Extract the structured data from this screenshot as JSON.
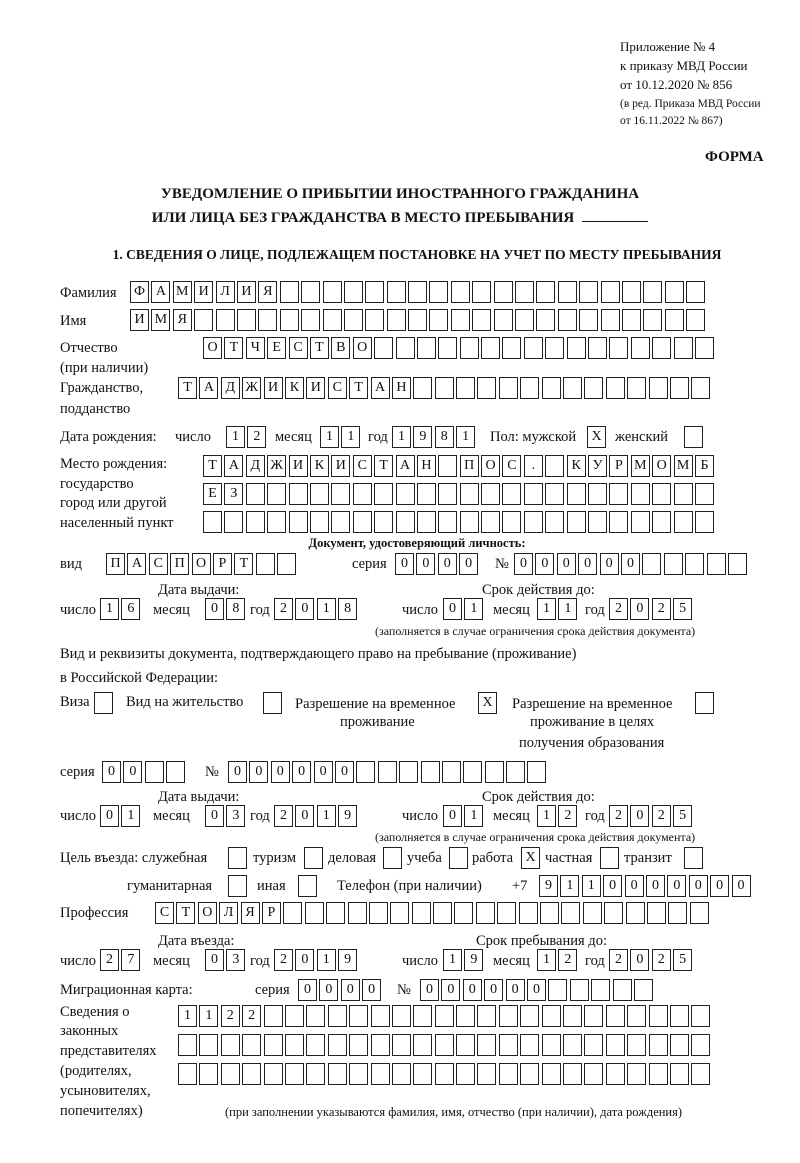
{
  "header": {
    "appendix_lines": [
      "Приложение № 4",
      "к приказу МВД России",
      "от 10.12.2020 № 856"
    ],
    "revision_lines": [
      "(в ред. Приказа МВД России",
      "от 16.11.2022 № 867)"
    ],
    "form_label": "ФОРМА",
    "title_line1": "УВЕДОМЛЕНИЕ О ПРИБЫТИИ ИНОСТРАННОГО ГРАЖДАНИНА",
    "title_line2": "ИЛИ ЛИЦА БЕЗ ГРАЖДАНСТВА В МЕСТО ПРЕБЫВАНИЯ",
    "section1": "1. СВЕДЕНИЯ О ЛИЦЕ, ПОДЛЕЖАЩЕМ ПОСТАНОВКЕ НА УЧЕТ ПО МЕСТУ ПРЕБЫВАНИЯ"
  },
  "labels": {
    "surname": "Фамилия",
    "name": "Имя",
    "patronymic": "Отчество",
    "patronymic_note": "(при наличии)",
    "citizenship1": "Гражданство,",
    "citizenship2": "подданство",
    "birth_date": "Дата рождения:",
    "day": "число",
    "month": "месяц",
    "year": "год",
    "sex_male": "Пол: мужской",
    "sex_female": "женский",
    "birth_place": [
      "Место рождения:",
      "государство",
      "город или другой",
      "населенный пункт"
    ],
    "id_doc": "Документ, удостоверяющий личность:",
    "kind": "вид",
    "series": "серия",
    "number": "№",
    "issue_date": "Дата выдачи:",
    "valid_until": "Срок действия до:",
    "valid_note": "(заполняется в случае ограничения срока действия документа)",
    "stay_doc1": "Вид и реквизиты документа, подтверждающего право на пребывание (проживание)",
    "stay_doc2": "в Российской Федерации:",
    "visa": "Виза",
    "residence_permit": "Вид на жительство",
    "temp_residence": [
      "Разрешение на временное",
      "проживание"
    ],
    "temp_residence_edu": [
      "Разрешение на временное",
      "проживание в целях",
      "получения образования"
    ],
    "purpose": "Цель въезда: служебная",
    "tourism": "туризм",
    "business": "деловая",
    "study": "учеба",
    "work": "работа",
    "private": "частная",
    "transit": "транзит",
    "humanitarian": "гуманитарная",
    "other": "иная",
    "phone": "Телефон (при наличии)",
    "phone_prefix": "+7",
    "profession": "Профессия",
    "entry_date": "Дата въезда:",
    "stay_until": "Срок пребывания до:",
    "migration_card": "Миграционная карта:",
    "representatives": [
      "Сведения о",
      "законных",
      "представителях",
      "(родителях,",
      "усыновителях,",
      "попечителях)"
    ],
    "representatives_note": "(при заполнении указываются фамилия, имя, отчество (при наличии), дата рождения)"
  },
  "values": {
    "surname": "ФАМИЛИЯ",
    "name": "ИМЯ",
    "patronymic": "ОТЧЕСТВО",
    "citizenship": "ТАДЖИКИСТАН",
    "birth_day": "12",
    "birth_month": "11",
    "birth_year": "1981",
    "sex_male": "X",
    "sex_female": "",
    "birth_place_1": "ТАДЖИКИСТАН ПОС. КУРМОМБ",
    "birth_place_2": "ЕЗ",
    "birth_place_3": "",
    "id_kind": "ПАСПОРТ",
    "id_series": "0000",
    "id_number": "000000",
    "id_issue_day": "16",
    "id_issue_month": "08",
    "id_issue_year": "2018",
    "id_valid_day": "01",
    "id_valid_month": "11",
    "id_valid_year": "2025",
    "visa": "",
    "residence_permit": "",
    "temp_residence": "X",
    "temp_residence_edu": "",
    "stay_series": "00",
    "stay_number": "000000",
    "stay_issue_day": "01",
    "stay_issue_month": "03",
    "stay_issue_year": "2019",
    "stay_valid_day": "01",
    "stay_valid_month": "12",
    "stay_valid_year": "2025",
    "purpose_official": "",
    "purpose_tourism": "",
    "purpose_business": "",
    "purpose_study": "",
    "purpose_work": "X",
    "purpose_private": "",
    "purpose_transit": "",
    "purpose_humanitarian": "",
    "purpose_other": "",
    "phone": "9110000000",
    "profession": "СТОЛЯР",
    "entry_day": "27",
    "entry_month": "03",
    "entry_year": "2019",
    "stay_until_day": "19",
    "stay_until_month": "12",
    "stay_until_year": "2025",
    "mc_series": "0000",
    "mc_number": "000000",
    "rep_1": "1122",
    "rep_2": "",
    "rep_3": ""
  }
}
